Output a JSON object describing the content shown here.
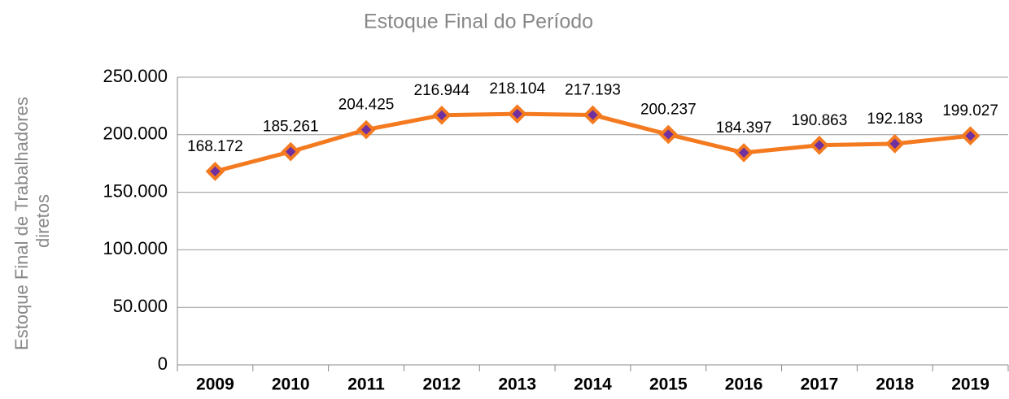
{
  "chart_data": {
    "type": "line",
    "title": "Estoque Final do Período",
    "y_label": [
      "Estoque Final de Trabalhadores",
      "diretos"
    ],
    "categories": [
      "2009",
      "2010",
      "2011",
      "2012",
      "2013",
      "2014",
      "2015",
      "2016",
      "2017",
      "2018",
      "2019"
    ],
    "values": [
      168172,
      185261,
      204425,
      216944,
      218104,
      217193,
      200237,
      184397,
      190863,
      192183,
      199027
    ],
    "value_labels": [
      "168.172",
      "185.261",
      "204.425",
      "216.944",
      "218.104",
      "217.193",
      "200.237",
      "184.397",
      "190.863",
      "192.183",
      "199.027"
    ],
    "color": "#f47a20",
    "marker_color": "#7030a0",
    "ylim": [
      0,
      250000
    ],
    "yticks": [
      0,
      {
        "value": 50000,
        "label": "50.000"
      },
      {
        "value": 100000,
        "label": "100.000"
      },
      {
        "value": 150000,
        "label": "150.000"
      },
      {
        "value": 200000,
        "label": "200.000"
      },
      {
        "value": 250000,
        "label": "250.000"
      }
    ],
    "grid": true
  }
}
